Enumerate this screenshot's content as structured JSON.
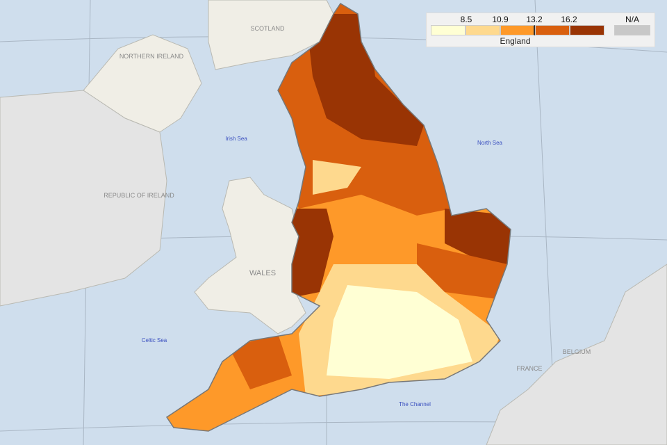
{
  "map": {
    "country_labels": [
      "SCOTLAND",
      "NORTHERN IRELAND",
      "REPUBLIC OF IRELAND",
      "WALES",
      "FRANCE",
      "BELGIUM"
    ],
    "sea_labels": [
      "Irish Sea",
      "North Sea",
      "Celtic Sea",
      "The Channel"
    ]
  },
  "legend": {
    "breaks": [
      "8.5",
      "10.9",
      "13.2",
      "16.2"
    ],
    "colors": [
      "#ffffd4",
      "#fed98e",
      "#fe9929",
      "#d95f0e",
      "#993404"
    ],
    "na_label": "N/A",
    "na_color": "#c8c8c8",
    "caption": "England",
    "marker_value": "13.2"
  }
}
